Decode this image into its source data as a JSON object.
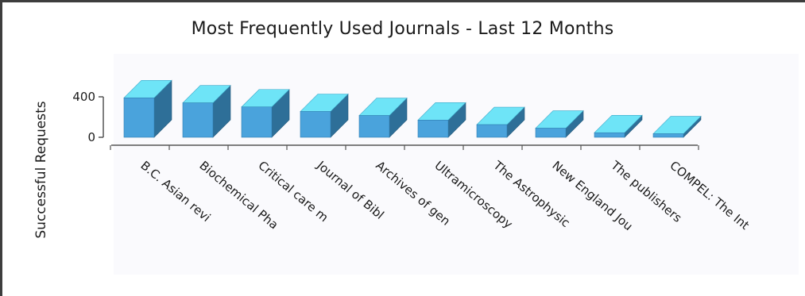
{
  "chart_data": {
    "type": "bar",
    "title": "Most Frequently Used Journals - Last 12 Months",
    "xlabel": "",
    "ylabel": "Successful Requests",
    "categories": [
      "B.C. Asian revi",
      "Biochemical Pha",
      "Critical care m",
      "Journal of Bibl",
      "Archives of gen",
      "Ultramicroscopy",
      "The Astrophysic",
      "New England Jou",
      "The publishers",
      "COMPEL: The Int"
    ],
    "values": [
      390,
      340,
      300,
      255,
      215,
      170,
      125,
      90,
      45,
      35
    ],
    "yticks": [
      0,
      400
    ],
    "ylim": [
      0,
      400
    ],
    "grid": false,
    "legend": "none",
    "colors": {
      "bar_front": "#4aa3dc",
      "bar_top": "#6ee4f7",
      "bar_side": "#2e6f98",
      "axis": "#555555"
    }
  }
}
